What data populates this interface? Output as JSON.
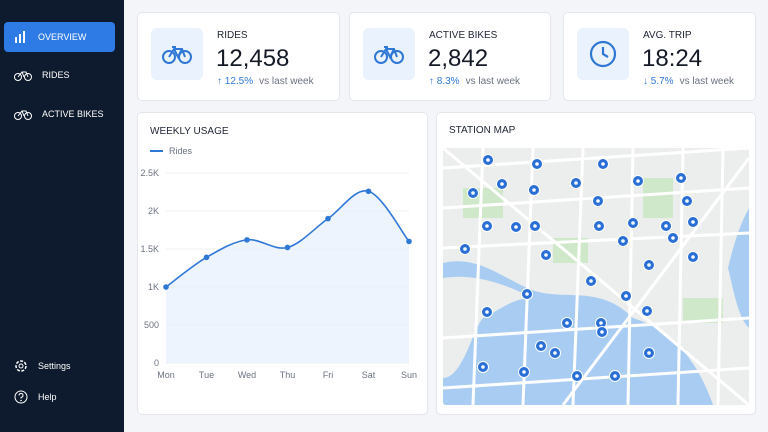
{
  "sidebar": {
    "nav": [
      {
        "label": "OVERVIEW"
      },
      {
        "label": "RIDES"
      },
      {
        "label": "ACTIVE BIKES"
      }
    ],
    "footer": [
      {
        "label": "Settings"
      },
      {
        "label": "Help"
      }
    ]
  },
  "kpis": [
    {
      "label": "RIDES",
      "value": "12,458",
      "change": "12.5%",
      "note": "vs last week"
    },
    {
      "label": "ACTIVE BIKES",
      "value": "2,842",
      "change": "8.3%",
      "note": "vs last week"
    },
    {
      "label": "AVG. TRIP",
      "value": "18:24",
      "change": "5.7%",
      "note": "vs last week"
    }
  ],
  "chart_data": {
    "type": "line",
    "title": "WEEKLY USAGE",
    "categories": [
      "Mon",
      "Tue",
      "Wed",
      "Thu",
      "Fri",
      "Sat",
      "Sun"
    ],
    "series": [
      {
        "name": "Rides",
        "color": "#2f78d6",
        "values": [
          1000,
          1390,
          1620,
          1520,
          1900,
          2260,
          1600
        ]
      }
    ],
    "ylim": [
      0,
      2500
    ],
    "yticks": [
      0,
      500,
      {
        "value": 1000,
        "label": "1K"
      },
      {
        "value": 1500,
        "label": "1.5K"
      },
      {
        "value": 2000,
        "label": "2K"
      },
      {
        "value": 2500,
        "label": "2.5K"
      }
    ],
    "grid": true
  },
  "map": {
    "title": "STATION MAP"
  }
}
